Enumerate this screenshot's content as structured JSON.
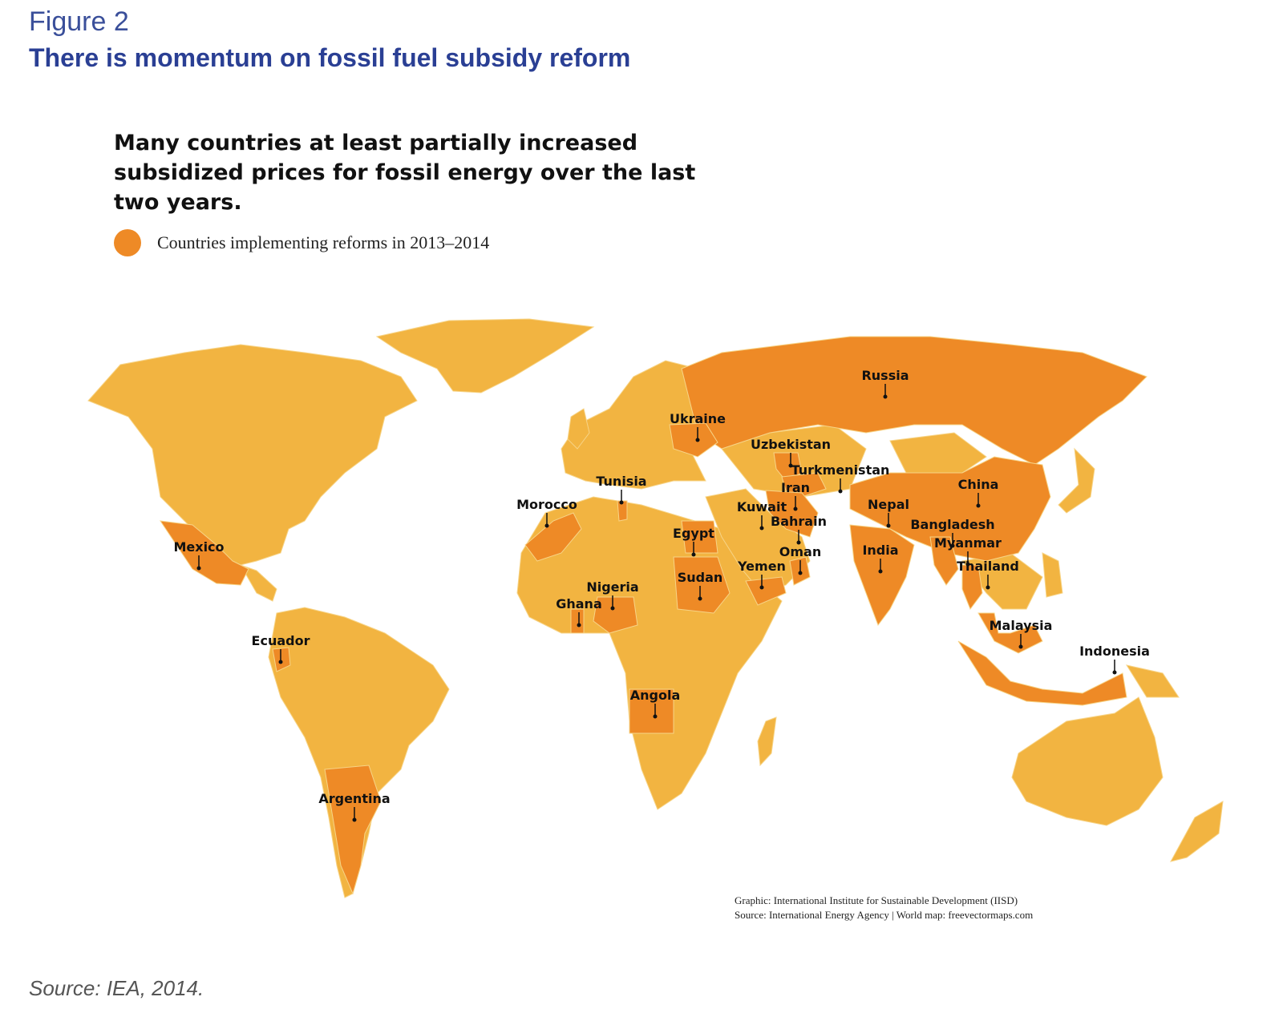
{
  "figure_number": "Figure 2",
  "figure_title": "There is momentum on fossil fuel subsidy reform",
  "headline": "Many countries at least partially increased subsidized prices for fossil energy over the last two years.",
  "legend": {
    "label": "Countries implementing reforms in 2013–2014",
    "color": "#ee8a26"
  },
  "colors": {
    "base_land": "#f2b441",
    "reform": "#ee8a26",
    "borders": "#f7d487"
  },
  "countries": [
    "Russia",
    "Ukraine",
    "Uzbekistan",
    "Turkmenistan",
    "Iran",
    "China",
    "Kuwait",
    "Bahrain",
    "Nepal",
    "Bangladesh",
    "Oman",
    "India",
    "Myanmar",
    "Yemen",
    "Thailand",
    "Tunisia",
    "Morocco",
    "Egypt",
    "Sudan",
    "Mexico",
    "Nigeria",
    "Ghana",
    "Malaysia",
    "Indonesia",
    "Ecuador",
    "Angola",
    "Argentina"
  ],
  "credits": {
    "graphic": "Graphic: International Institute for Sustainable Development (IISD)",
    "source": "Source: International Energy Agency | World map: freevectormaps.com"
  },
  "source_note": "Source: IEA, 2014."
}
